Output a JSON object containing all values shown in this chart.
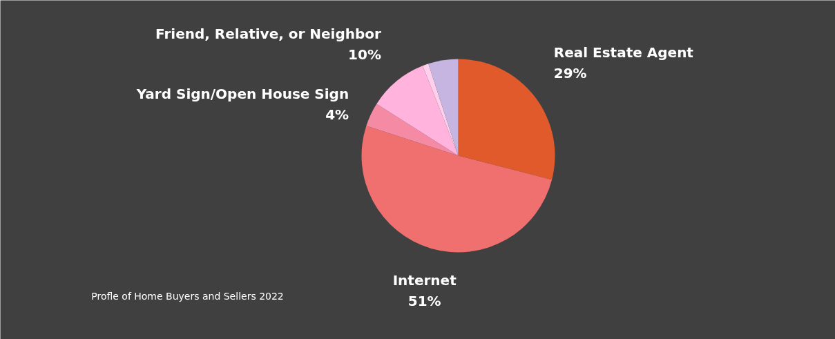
{
  "chart_data": {
    "type": "pie",
    "categories": [
      "Real Estate Agent",
      "Internet",
      "Yard Sign/Open House Sign",
      "Friend, Relative, or Neighbor",
      null,
      null
    ],
    "values": [
      29,
      51,
      4,
      10,
      1,
      5
    ],
    "colors": [
      "#e05a2b",
      "#f07070",
      "#f58aa5",
      "#ffb3dd",
      "#ffd0ec",
      "#c5b5e0"
    ],
    "value_labels": [
      "29%",
      "51%",
      "4%",
      "10%",
      null,
      null
    ],
    "annotations": [
      "Profle of Home Buyers and Sellers 2022"
    ]
  }
}
